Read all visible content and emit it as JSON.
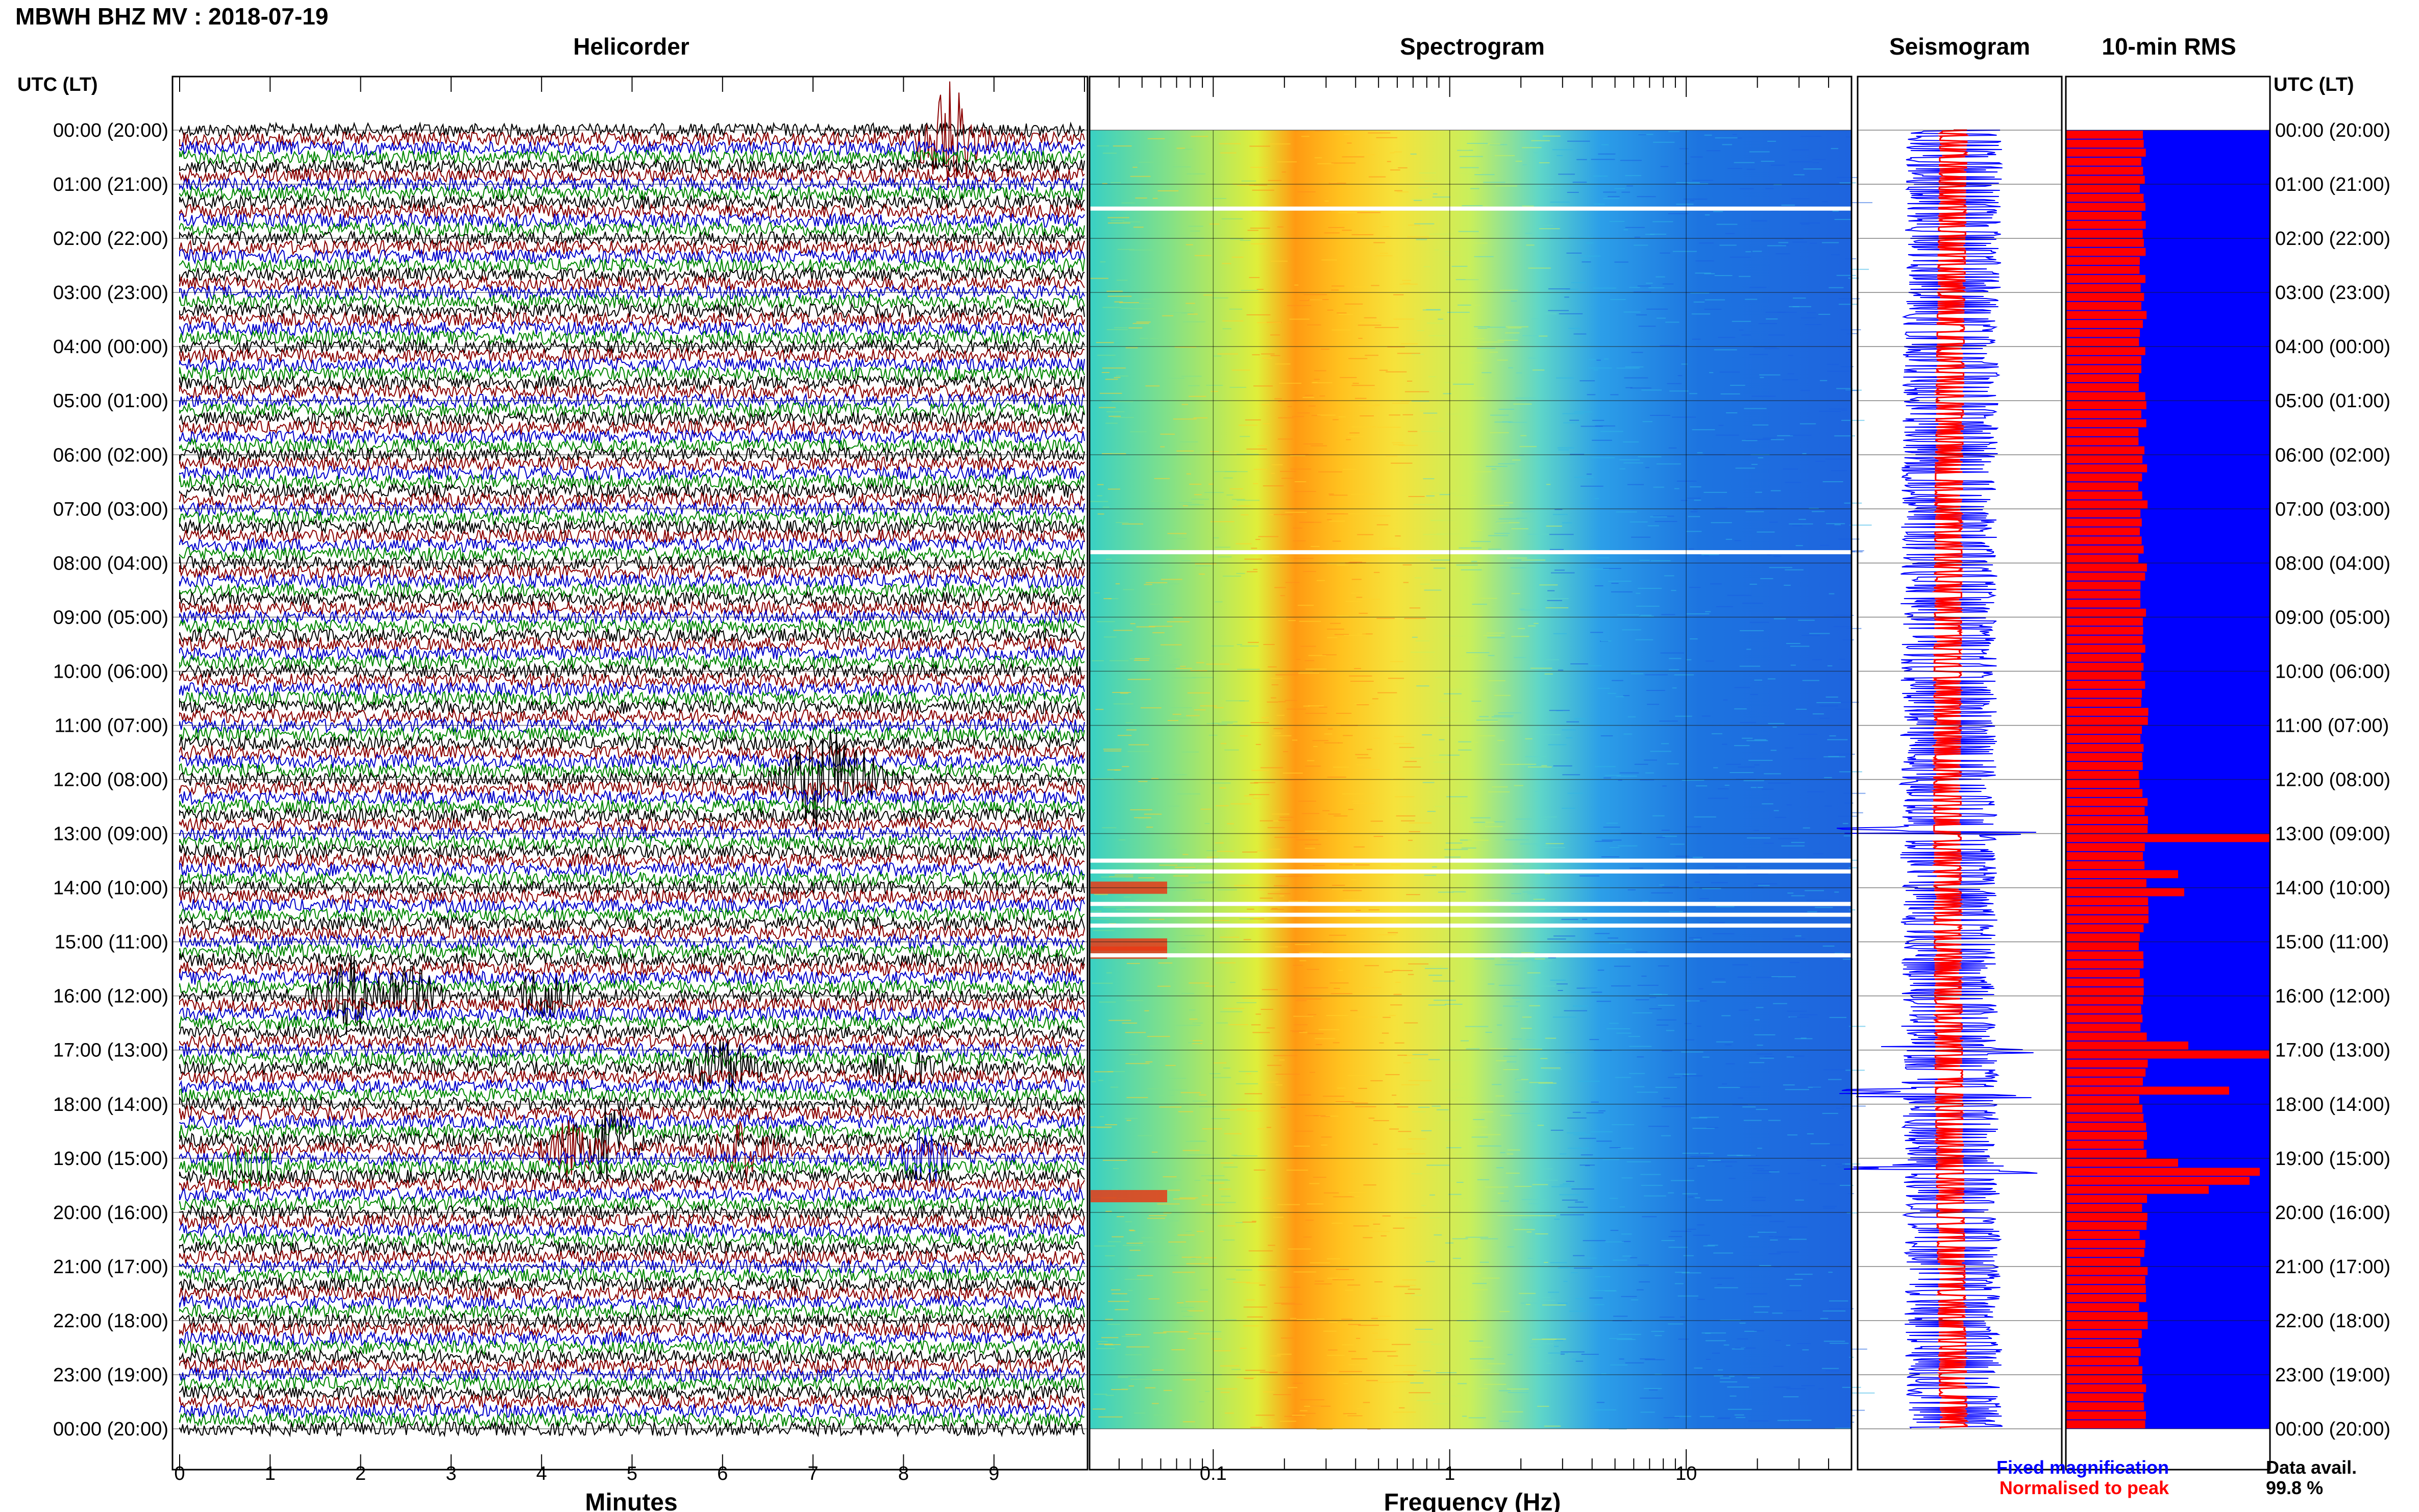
{
  "header": {
    "station_title": "MBWH BHZ MV : 2018-07-19",
    "utc_lt_left": "UTC (LT)",
    "utc_lt_right": "UTC (LT)"
  },
  "panels": {
    "helicorder": "Helicorder",
    "spectrogram": "Spectrogram",
    "seismogram": "Seismogram",
    "rms": "10-min RMS"
  },
  "axes": {
    "helicorder_xlabel": "Minutes",
    "spectrogram_xlabel": "Frequency (Hz)",
    "minute_ticks": [
      "0",
      "1",
      "2",
      "3",
      "4",
      "5",
      "6",
      "7",
      "8",
      "9"
    ],
    "freq_ticks": [
      "0.1",
      "1",
      "10"
    ]
  },
  "time_labels": [
    "00:00 (20:00)",
    "01:00 (21:00)",
    "02:00 (22:00)",
    "03:00 (23:00)",
    "04:00 (00:00)",
    "05:00 (01:00)",
    "06:00 (02:00)",
    "07:00 (03:00)",
    "08:00 (04:00)",
    "09:00 (05:00)",
    "10:00 (06:00)",
    "11:00 (07:00)",
    "12:00 (08:00)",
    "13:00 (09:00)",
    "14:00 (10:00)",
    "15:00 (11:00)",
    "16:00 (12:00)",
    "17:00 (13:00)",
    "18:00 (14:00)",
    "19:00 (15:00)",
    "20:00 (16:00)",
    "21:00 (17:00)",
    "22:00 (18:00)",
    "23:00 (19:00)",
    "00:00 (20:00)"
  ],
  "legend": {
    "fixed_magnification": "Fixed magnification",
    "normalised_to_peak": "Normalised to peak",
    "data_avail_label": "Data avail.",
    "data_avail_value": "99.8 %"
  },
  "colors": {
    "trace_colors": [
      "#000000",
      "#8b0000",
      "#0000cc",
      "#008800"
    ],
    "fixed_blue": "#0000ff",
    "normalised_red": "#ff0000"
  },
  "chart_data": [
    {
      "type": "line",
      "title": "Helicorder",
      "xlabel": "Minutes",
      "xlim": [
        0,
        10
      ],
      "ylim_hours_utc": [
        0,
        24
      ],
      "lines_per_hour": 6,
      "events": [
        {
          "hour": 0.2,
          "minute": 8.5,
          "amp": 2.5,
          "color": "#000000"
        },
        {
          "hour": 12.0,
          "minute": 7.0,
          "amp": 2.0,
          "color": "#008800"
        },
        {
          "hour": 12.0,
          "minute": 7.4,
          "amp": 1.6,
          "color": "#008800"
        },
        {
          "hour": 16.0,
          "minute": 1.9,
          "amp": 1.5,
          "color": "#000000"
        },
        {
          "hour": 16.0,
          "minute": 2.5,
          "amp": 1.2,
          "color": "#8b0000"
        },
        {
          "hour": 16.0,
          "minute": 4.0,
          "amp": 1.1,
          "color": "#000000"
        },
        {
          "hour": 17.3,
          "minute": 6.0,
          "amp": 1.2,
          "color": "#0000cc"
        },
        {
          "hour": 17.3,
          "minute": 8.0,
          "amp": 0.9,
          "color": "#0000cc"
        },
        {
          "hour": 18.6,
          "minute": 4.7,
          "amp": 1.5,
          "color": "#008800"
        },
        {
          "hour": 18.9,
          "minute": 4.3,
          "amp": 1.0,
          "color": "#000000"
        },
        {
          "hour": 18.9,
          "minute": 6.2,
          "amp": 1.1,
          "color": "#000000"
        },
        {
          "hour": 19.0,
          "minute": 8.2,
          "amp": 1.0,
          "color": "#008800"
        },
        {
          "hour": 19.1,
          "minute": 0.8,
          "amp": 1.1,
          "color": "#8b0000"
        }
      ]
    },
    {
      "type": "heatmap",
      "title": "Spectrogram",
      "xlabel": "Frequency (Hz)",
      "x_scale": "log",
      "xlim": [
        0.03,
        50
      ],
      "ylim_hours_utc": [
        0,
        24
      ],
      "peak_band_hz": [
        0.2,
        0.45
      ],
      "gaps_hours_utc": [
        1.45,
        7.8,
        13.5,
        13.7,
        14.3,
        14.5,
        14.7,
        15.25
      ],
      "lowfreq_hot_rows_hours_utc": [
        14.0,
        15.05,
        15.2,
        19.7
      ]
    },
    {
      "type": "line",
      "title": "Seismogram",
      "ylim_hours_utc": [
        0,
        24
      ],
      "fixed_magnification_color": "#0000ff",
      "normalised_to_peak_color": "#ff0000",
      "spike_hours_utc": [
        12.95,
        17.0,
        17.8,
        19.2
      ]
    },
    {
      "type": "bar",
      "title": "10-min RMS",
      "orientation": "horizontal",
      "ylim_hours_utc": [
        0,
        24
      ],
      "bins_per_hour": 6,
      "typical_red_fraction": 0.38,
      "peaks": [
        {
          "hour": 12.95,
          "value": 1.0
        },
        {
          "hour": 13.6,
          "value": 0.55
        },
        {
          "hour": 14.0,
          "value": 0.58
        },
        {
          "hour": 16.8,
          "value": 0.6
        },
        {
          "hour": 16.95,
          "value": 1.0
        },
        {
          "hour": 17.7,
          "value": 0.8
        },
        {
          "hour": 18.95,
          "value": 0.55
        },
        {
          "hour": 19.2,
          "value": 0.95
        },
        {
          "hour": 19.35,
          "value": 0.9
        },
        {
          "hour": 19.5,
          "value": 0.7
        }
      ]
    }
  ]
}
